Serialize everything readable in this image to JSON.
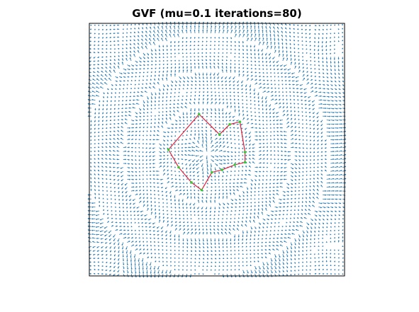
{
  "chart_data": {
    "type": "quiver",
    "title": "GVF   (mu=0.1  iterations=80)",
    "xlabel": "",
    "ylabel": "",
    "grid": false,
    "axis_ticks": false,
    "field": {
      "description_type": "gradient vector flow field",
      "mu": 0.1,
      "iterations": 80,
      "grid_size": 64,
      "x_range": [
        0,
        1
      ],
      "y_range": [
        0,
        1
      ],
      "arrow_color": "#1f77b4"
    },
    "snake": {
      "line_color": "#e8203a",
      "marker_color": "#33cc33",
      "points": [
        [
          0.31,
          0.5
        ],
        [
          0.43,
          0.36
        ],
        [
          0.51,
          0.44
        ],
        [
          0.55,
          0.4
        ],
        [
          0.59,
          0.39
        ],
        [
          0.61,
          0.51
        ],
        [
          0.61,
          0.55
        ],
        [
          0.57,
          0.56
        ],
        [
          0.52,
          0.58
        ],
        [
          0.48,
          0.59
        ],
        [
          0.44,
          0.66
        ],
        [
          0.4,
          0.63
        ],
        [
          0.35,
          0.57
        ]
      ]
    }
  }
}
